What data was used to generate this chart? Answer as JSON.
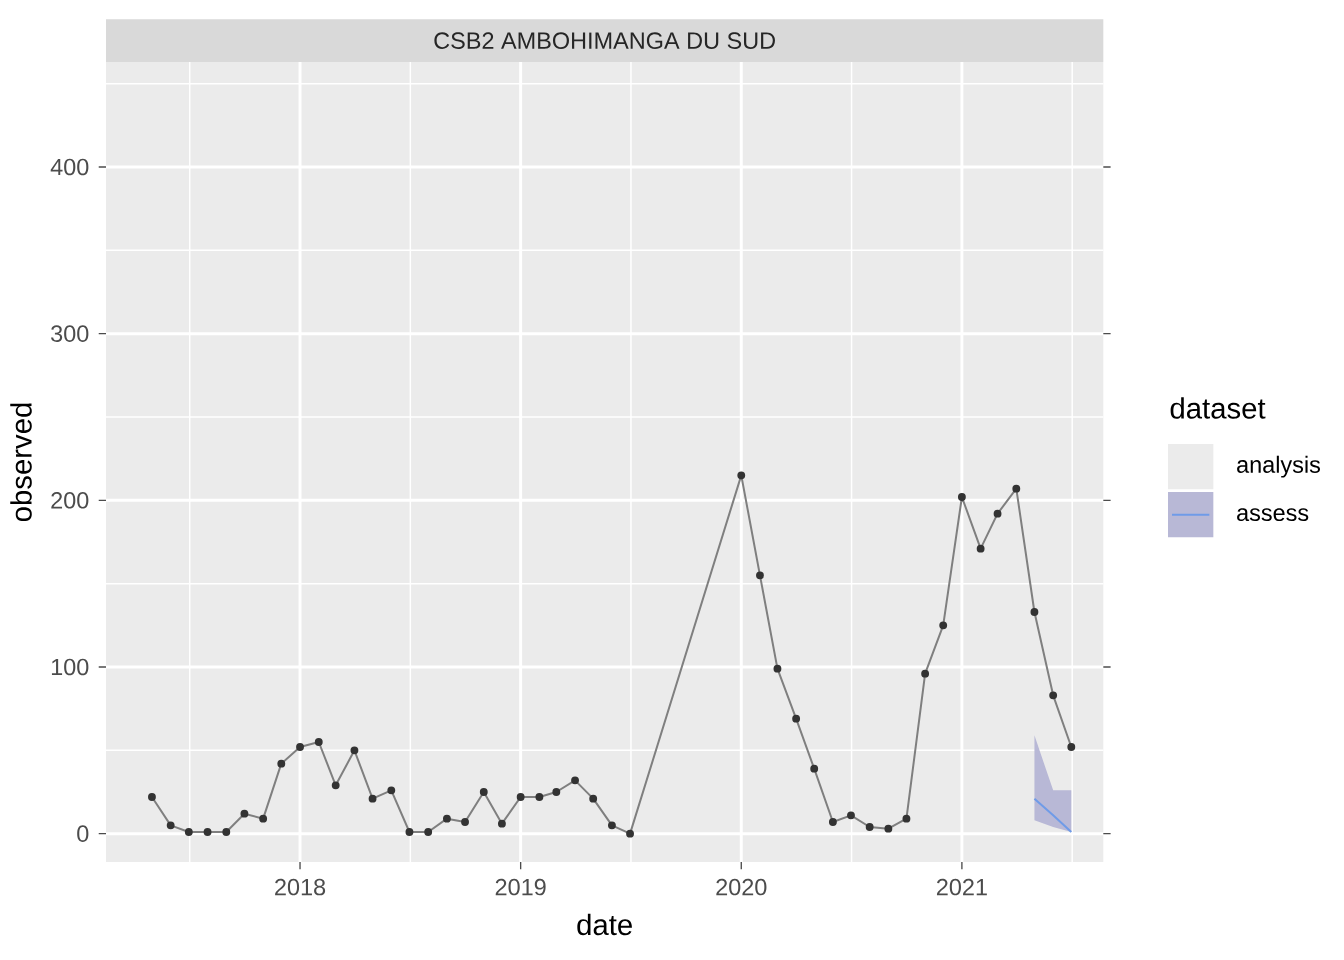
{
  "chart_data": {
    "type": "line",
    "title": "CSB2 AMBOHIMANGA DU SUD",
    "xlabel": "date",
    "ylabel": "observed",
    "legend_title": "dataset",
    "xlim": [
      "2017-02-14",
      "2021-08-23"
    ],
    "ylim": [
      -17,
      463
    ],
    "xticks": [
      "2018",
      "2019",
      "2020",
      "2021"
    ],
    "yticks": [
      0,
      100,
      200,
      300,
      400
    ],
    "grid": true,
    "legend": "right",
    "series": [
      {
        "name": "analysis",
        "color": "#7f7f7f",
        "marker": "circle",
        "x": [
          "2017-05",
          "2017-06",
          "2017-07",
          "2017-08",
          "2017-09",
          "2017-10",
          "2017-11",
          "2017-12",
          "2018-01",
          "2018-02",
          "2018-03",
          "2018-04",
          "2018-05",
          "2018-06",
          "2018-07",
          "2018-08",
          "2018-09",
          "2018-10",
          "2018-11",
          "2018-12",
          "2019-01",
          "2019-02",
          "2019-03",
          "2019-04",
          "2019-05",
          "2019-06",
          "2019-07",
          "2020-01",
          "2020-02",
          "2020-03",
          "2020-04",
          "2020-05",
          "2020-06",
          "2020-07",
          "2020-08",
          "2020-09",
          "2020-10",
          "2020-11",
          "2020-12",
          "2021-01",
          "2021-02",
          "2021-03",
          "2021-04",
          "2021-05",
          "2021-06",
          "2021-07"
        ],
        "values": [
          22,
          5,
          1,
          1,
          1,
          12,
          9,
          42,
          52,
          55,
          29,
          50,
          21,
          26,
          1,
          1,
          9,
          7,
          25,
          6,
          22,
          22,
          25,
          32,
          21,
          5,
          0,
          215,
          155,
          99,
          69,
          39,
          7,
          11,
          4,
          3,
          9,
          96,
          125,
          202,
          171,
          192,
          207,
          133,
          83,
          52
        ]
      },
      {
        "name": "assess",
        "color": "#6f9be8",
        "x": [
          "2021-05",
          "2021-06",
          "2021-07"
        ],
        "values": [
          21,
          11,
          1
        ],
        "lower": [
          8,
          4,
          1
        ],
        "upper": [
          59,
          26,
          26
        ]
      }
    ]
  }
}
